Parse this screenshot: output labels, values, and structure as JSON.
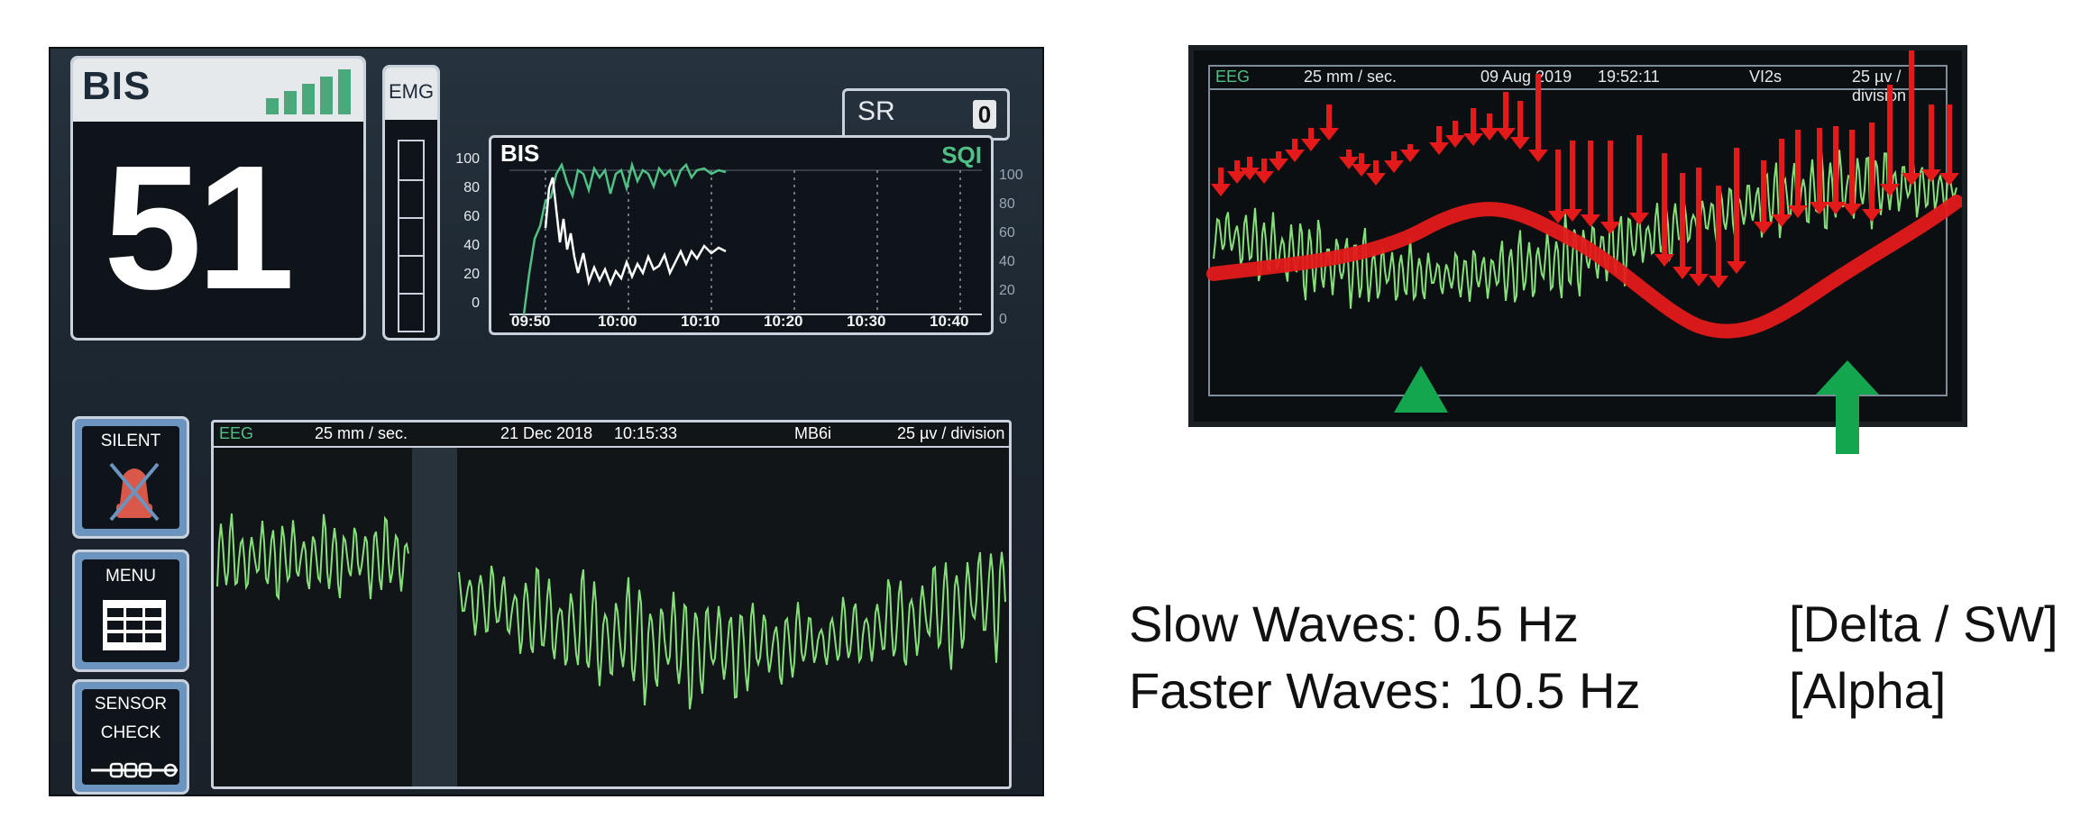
{
  "monitor": {
    "bis_panel": {
      "label": "BIS",
      "value": "51",
      "signal_bars": 5
    },
    "emg_panel": {
      "label": "EMG"
    },
    "sr_panel": {
      "label": "SR",
      "value": "0"
    },
    "trend": {
      "title": "BIS",
      "sqi_label": "SQI",
      "y_ticks_left": [
        "100",
        "80",
        "60",
        "40",
        "20",
        "0"
      ],
      "y_ticks_right": [
        "100",
        "80",
        "60",
        "40",
        "20",
        "0"
      ],
      "x_ticks": [
        "09:50",
        "10:00",
        "10:10",
        "10:20",
        "10:30",
        "10:40"
      ]
    },
    "buttons": {
      "silent_label": "SILENT",
      "menu_label": "MENU",
      "sensor_label_1": "SENSOR",
      "sensor_label_2": "CHECK"
    },
    "eeg": {
      "tag": "EEG",
      "speed": "25 mm / sec.",
      "date": "21 Dec 2018",
      "time": "10:15:33",
      "id": "MB6i",
      "scale": "25 µv / division"
    }
  },
  "inset": {
    "tag": "EEG",
    "speed": "25 mm / sec.",
    "date": "09 Aug 2019",
    "time": "19:52:11",
    "id": "VI2s",
    "scale": "25 µv / division",
    "colors": {
      "eeg": "#86e07a",
      "annotation_red": "#e41a1a",
      "marker_green": "#13a64e"
    }
  },
  "text": {
    "line1_label": "Slow Waves: 0.5 Hz",
    "line1_band": "[Delta / SW]",
    "line2_label": "Faster Waves: 10.5 Hz",
    "line2_band": "[Alpha]"
  }
}
